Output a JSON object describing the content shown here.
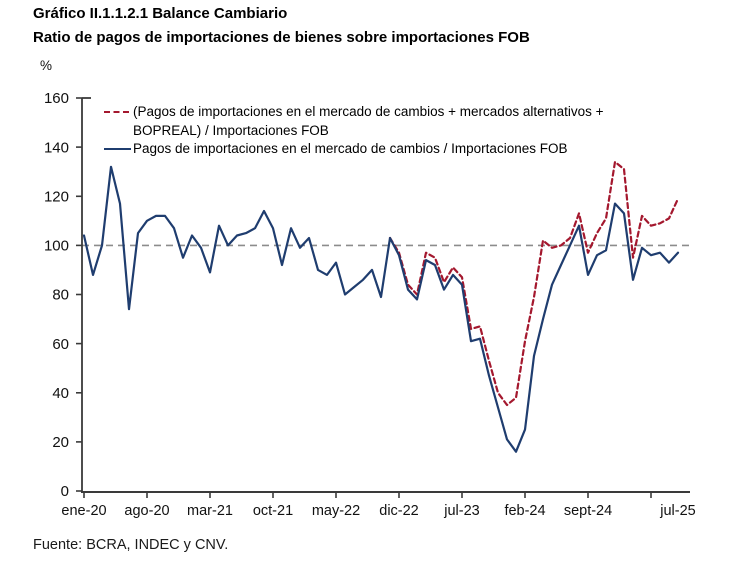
{
  "header": {
    "title": "Gráfico II.1.1.2.1 Balance Cambiario",
    "subtitle": "Ratio de pagos de importaciones de bienes sobre importaciones FOB"
  },
  "footer": {
    "source": "Fuente: BCRA, INDEC y CNV."
  },
  "colors": {
    "series_dashed": "#a4182e",
    "series_solid": "#1f3d6f",
    "reference_line": "#8c8c8c",
    "axis": "#3a3a3a",
    "tick_text": "#111111"
  },
  "chart_data": {
    "type": "line",
    "title": "Gráfico II.1.1.2.1 Balance Cambiario",
    "subtitle": "Ratio de pagos de importaciones de bienes sobre importaciones FOB",
    "unit_label": "%",
    "ylim": [
      0,
      160
    ],
    "y_ticks": [
      0,
      20,
      40,
      60,
      80,
      100,
      120,
      140,
      160
    ],
    "reference_line_y": 100,
    "grid": false,
    "legend_position": "top-left-inside",
    "x_axis": {
      "start_month_label": "ene-20",
      "end_month_label": "jul-25",
      "months_total": 67,
      "tick_months": [
        0,
        7,
        14,
        21,
        28,
        35,
        42,
        49,
        56,
        63
      ],
      "labels": [
        {
          "text": "ene-20",
          "month": 0
        },
        {
          "text": "ago-20",
          "month": 7
        },
        {
          "text": "mar-21",
          "month": 14
        },
        {
          "text": "oct-21",
          "month": 21
        },
        {
          "text": "may-22",
          "month": 28
        },
        {
          "text": "dic-22",
          "month": 35
        },
        {
          "text": "jul-23",
          "month": 42
        },
        {
          "text": "feb-24",
          "month": 49
        },
        {
          "text": "sept-24",
          "month": 56
        },
        {
          "text": "jul-25",
          "month": 66
        }
      ]
    },
    "series": [
      {
        "name": "(Pagos de importaciones en el mercado de cambios + mercados alternativos + BOPREAL) / Importaciones FOB",
        "style": "dashed",
        "color": "#a4182e",
        "start_month": 34,
        "values": [
          103,
          97,
          84,
          80,
          97,
          95,
          85,
          91,
          87,
          66,
          67,
          53,
          40,
          35,
          38,
          61,
          79,
          102,
          99,
          100,
          103,
          113,
          97,
          105,
          111,
          134,
          131,
          95,
          112,
          108,
          109,
          111,
          119
        ]
      },
      {
        "name": "Pagos de importaciones en el mercado de cambios / Importaciones FOB",
        "style": "solid",
        "color": "#1f3d6f",
        "start_month": 0,
        "values": [
          104,
          88,
          100,
          132,
          117,
          74,
          105,
          110,
          112,
          112,
          107,
          95,
          104,
          99,
          89,
          108,
          100,
          104,
          105,
          107,
          114,
          107,
          92,
          107,
          99,
          103,
          90,
          88,
          93,
          80,
          83,
          86,
          90,
          79,
          103,
          96,
          82,
          78,
          94,
          92,
          82,
          88,
          84,
          61,
          62,
          47,
          34,
          21,
          16,
          25,
          55,
          70,
          84,
          92,
          100,
          108,
          88,
          96,
          98,
          117,
          113,
          86,
          99,
          96,
          97,
          93,
          97
        ]
      }
    ],
    "legend": {
      "entry1_line1": "(Pagos de importaciones en el mercado de cambios + mercados alternativos +",
      "entry1_line2": "BOPREAL) / Importaciones FOB",
      "entry2": "Pagos de importaciones en el mercado de cambios / Importaciones FOB"
    }
  }
}
